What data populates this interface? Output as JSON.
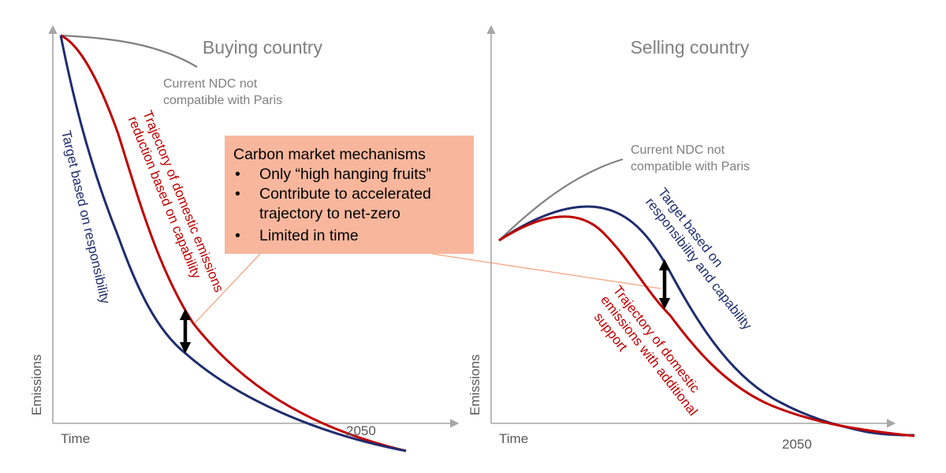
{
  "colors": {
    "navy_curve": "#1f2d6e",
    "red_curve": "#c00000",
    "gray": "#7f7f7f",
    "axis": "#a6a6a6",
    "box_fill": "#f8b79d",
    "connector": "#f4a582"
  },
  "left_panel": {
    "title": "Buying country",
    "ndc_note": [
      "Current NDC not",
      "compatible with Paris"
    ],
    "blue_label": [
      "Target based on responsibility"
    ],
    "red_label": [
      "Trajectory of domestic emissions",
      "reduction based on capability"
    ],
    "y_axis_label": "Emissions",
    "x_axis_label": "Time",
    "year_label": "2050"
  },
  "right_panel": {
    "title": "Selling country",
    "ndc_note": [
      "Current NDC not",
      "compatible with Paris"
    ],
    "blue_label": [
      "Target based on",
      "responsibility and capability"
    ],
    "red_label": [
      "Trajectory of domestic",
      "emissions with additional",
      "support"
    ],
    "y_axis_label": "Emissions",
    "x_axis_label": "Time",
    "year_label": "2050"
  },
  "callout": {
    "heading": "Carbon market mechanisms",
    "bullet_symbol": "•",
    "bullets": [
      [
        "Only “high hanging fruits”"
      ],
      [
        "Contribute to accelerated",
        "trajectory to net-zero"
      ],
      [
        "Limited in time"
      ]
    ]
  }
}
